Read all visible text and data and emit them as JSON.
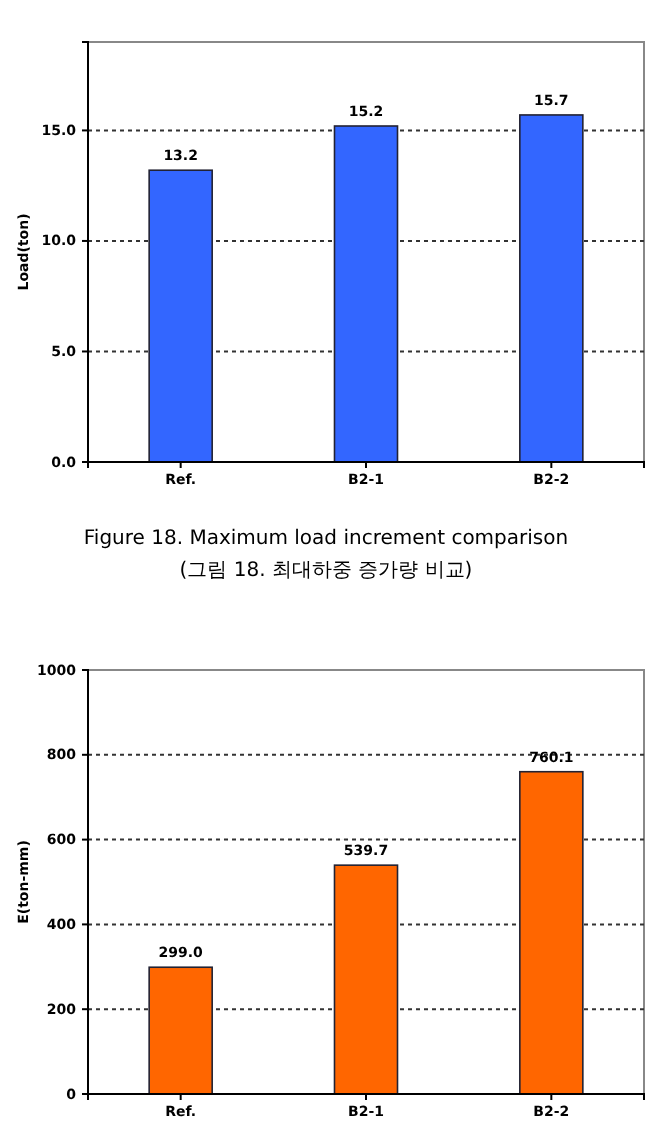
{
  "chart_data": [
    {
      "type": "bar",
      "ylabel": "Load(ton)",
      "categories": [
        "Ref.",
        "B2-1",
        "B2-2"
      ],
      "values": [
        13.2,
        15.2,
        15.7
      ],
      "value_labels": [
        "13.2",
        "15.2",
        "15.7"
      ],
      "color": "#3366ff",
      "ylim": [
        0,
        19
      ],
      "yticks": [
        {
          "value": 0,
          "label": "0.0"
        },
        {
          "value": 5,
          "label": "5.0"
        },
        {
          "value": 10,
          "label": "10.0"
        },
        {
          "value": 15,
          "label": "15.0"
        }
      ],
      "grid": "y",
      "annotations": [
        "Figure 18. Maximum load increment comparison",
        "(그림 18. 최대하중 증가량 비교)"
      ]
    },
    {
      "type": "bar",
      "ylabel": "E(ton-mm)",
      "categories": [
        "Ref.",
        "B2-1",
        "B2-2"
      ],
      "values": [
        299.0,
        539.7,
        760.1
      ],
      "value_labels": [
        "299.0",
        "539.7",
        "760.1"
      ],
      "color": "#ff6600",
      "ylim": [
        0,
        1000
      ],
      "yticks": [
        0,
        200,
        400,
        600,
        800,
        1000
      ],
      "grid": "y"
    }
  ]
}
